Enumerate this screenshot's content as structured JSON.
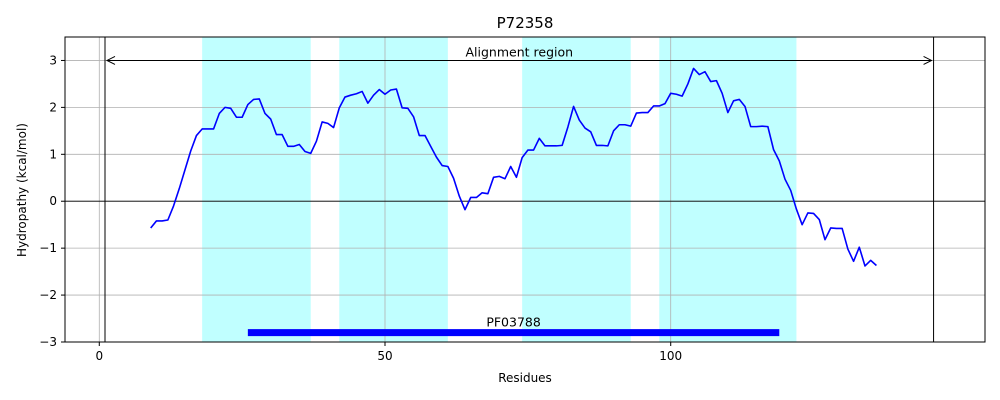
{
  "chart_data": {
    "type": "line",
    "title": "P72358",
    "xlabel": "Residues",
    "ylabel": "Hydropathy (kcal/mol)",
    "xlim": [
      -6,
      155
    ],
    "ylim": [
      -3,
      3.5
    ],
    "xticks": [
      0,
      50,
      100
    ],
    "yticks": [
      -3,
      -2,
      -1,
      0,
      1,
      2,
      3
    ],
    "grid": true,
    "colors": {
      "line": "#0000ff",
      "tm_band": "#c0ffff",
      "domain_bar": "#0000ff",
      "grid": "#b0b0b0",
      "axis": "#000000"
    },
    "tm_regions": [
      [
        18,
        37
      ],
      [
        42,
        61
      ],
      [
        74,
        93
      ],
      [
        98,
        122
      ]
    ],
    "alignment_region": {
      "label": "Alignment region",
      "start": 1,
      "end": 146,
      "y": 3
    },
    "domain": {
      "label": "PF03788",
      "start": 26,
      "end": 119,
      "y": -2.8
    },
    "series": [
      {
        "x": [
          9,
          10,
          11,
          12,
          13,
          14,
          15,
          16,
          17,
          18,
          19,
          20,
          21,
          22,
          23,
          24,
          25,
          26,
          27,
          28,
          29,
          30,
          31,
          32,
          33,
          34,
          35,
          36,
          37,
          38,
          39,
          40,
          41,
          42,
          43,
          44,
          45,
          46,
          47,
          48,
          49,
          50,
          51,
          52,
          53,
          54,
          55,
          56,
          57,
          58,
          59,
          60,
          61,
          62,
          63,
          64,
          65,
          66,
          67,
          68,
          69,
          70,
          71,
          72,
          73,
          74,
          75,
          76,
          77,
          78,
          79,
          80,
          81,
          82,
          83,
          84,
          85,
          86,
          87,
          88,
          89,
          90,
          91,
          92,
          93,
          94,
          95,
          96,
          97,
          98,
          99,
          100,
          101,
          102,
          103,
          104,
          105,
          106,
          107,
          108,
          109,
          110,
          111,
          112,
          113,
          114,
          115,
          116,
          117,
          118,
          119,
          120,
          121,
          122,
          123,
          124,
          125,
          126,
          127,
          128,
          129,
          130,
          131,
          132,
          133,
          134,
          135,
          136
        ],
        "values": [
          -0.57,
          -0.42,
          -0.42,
          -0.4,
          -0.1,
          0.27,
          0.67,
          1.07,
          1.4,
          1.54,
          1.54,
          1.54,
          1.87,
          2.0,
          1.98,
          1.79,
          1.79,
          2.06,
          2.17,
          2.18,
          1.87,
          1.75,
          1.42,
          1.42,
          1.17,
          1.17,
          1.21,
          1.06,
          1.02,
          1.28,
          1.69,
          1.66,
          1.57,
          1.99,
          2.22,
          2.26,
          2.29,
          2.34,
          2.09,
          2.26,
          2.38,
          2.28,
          2.37,
          2.39,
          1.99,
          1.98,
          1.8,
          1.4,
          1.4,
          1.17,
          0.94,
          0.76,
          0.74,
          0.49,
          0.11,
          -0.18,
          0.08,
          0.08,
          0.18,
          0.16,
          0.51,
          0.53,
          0.48,
          0.74,
          0.51,
          0.93,
          1.09,
          1.09,
          1.34,
          1.18,
          1.18,
          1.18,
          1.19,
          1.58,
          2.02,
          1.73,
          1.56,
          1.48,
          1.19,
          1.19,
          1.18,
          1.5,
          1.63,
          1.63,
          1.6,
          1.88,
          1.89,
          1.89,
          2.03,
          2.03,
          2.08,
          2.3,
          2.28,
          2.24,
          2.5,
          2.83,
          2.7,
          2.76,
          2.55,
          2.57,
          2.3,
          1.89,
          2.14,
          2.17,
          2.02,
          1.59,
          1.59,
          1.6,
          1.59,
          1.1,
          0.86,
          0.47,
          0.23,
          -0.17,
          -0.5,
          -0.25,
          -0.26,
          -0.39,
          -0.82,
          -0.57,
          -0.58,
          -0.58,
          -1.02,
          -1.28,
          -0.98,
          -1.38,
          -1.26,
          -1.37
        ]
      }
    ]
  }
}
